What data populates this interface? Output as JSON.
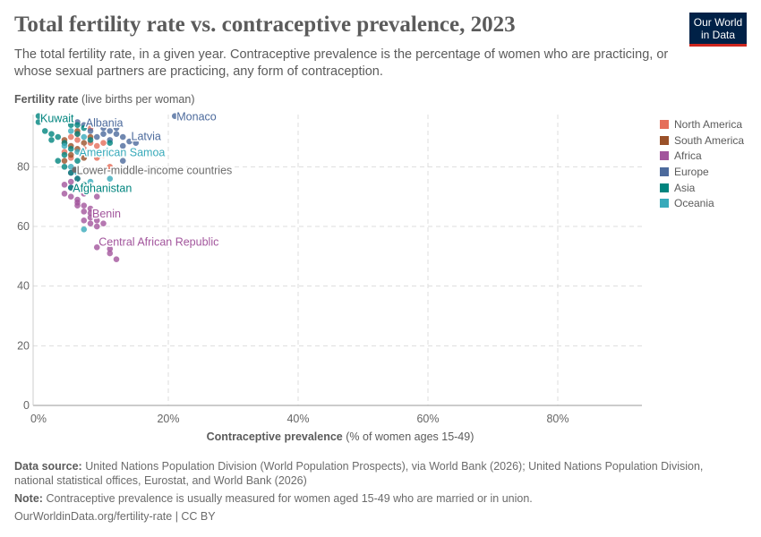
{
  "header": {
    "title": "Total fertility rate vs. contraceptive prevalence, 2023",
    "subtitle": "The total fertility rate, in a given year. Contraceptive prevalence is the percentage of women who are practicing, or whose sexual partners are practicing, any form of contraception.",
    "logo": "Our World in Data"
  },
  "chart_data": {
    "type": "scatter",
    "title": "Total fertility rate vs. contraceptive prevalence, 2023",
    "ylabel_bold": "Fertility rate",
    "ylabel_rest": "(live births per woman)",
    "xlabel_bold": "Contraceptive prevalence",
    "xlabel_rest": "(% of women ages 15-49)",
    "xlim": [
      0,
      90
    ],
    "ylim": [
      0,
      97
    ],
    "xticks": [
      {
        "v": 0,
        "label": "0%"
      },
      {
        "v": 20,
        "label": "20%"
      },
      {
        "v": 40,
        "label": "40%"
      },
      {
        "v": 60,
        "label": "60%"
      },
      {
        "v": 80,
        "label": "80%"
      }
    ],
    "yticks": [
      {
        "v": 0,
        "label": "0"
      },
      {
        "v": 20,
        "label": "20"
      },
      {
        "v": 40,
        "label": "40"
      },
      {
        "v": 60,
        "label": "60"
      },
      {
        "v": 80,
        "label": "80"
      }
    ],
    "grid": true,
    "legend_position": "right",
    "series": [
      {
        "name": "North America",
        "color": "#e56e5a",
        "points": [
          [
            5,
            90
          ],
          [
            6,
            89
          ],
          [
            8,
            88
          ],
          [
            9,
            87
          ],
          [
            10,
            88
          ],
          [
            7,
            86
          ],
          [
            4,
            85
          ],
          [
            5,
            83
          ],
          [
            9,
            83
          ],
          [
            10,
            84
          ],
          [
            6,
            91
          ],
          [
            8,
            93
          ],
          [
            11,
            80
          ],
          [
            4,
            88
          ]
        ]
      },
      {
        "name": "South America",
        "color": "#9a5129",
        "points": [
          [
            4,
            89
          ],
          [
            5,
            87
          ],
          [
            6,
            86
          ],
          [
            7,
            88
          ],
          [
            5,
            84
          ],
          [
            8,
            90
          ],
          [
            6,
            92
          ],
          [
            7,
            83
          ],
          [
            4,
            82
          ]
        ]
      },
      {
        "name": "Africa",
        "color": "#a2559c",
        "points": [
          [
            5,
            78
          ],
          [
            6,
            76
          ],
          [
            4,
            74
          ],
          [
            5,
            73
          ],
          [
            4,
            71
          ],
          [
            5,
            70
          ],
          [
            6,
            69
          ],
          [
            7,
            67
          ],
          [
            6,
            68
          ],
          [
            8,
            66
          ],
          [
            7,
            65
          ],
          [
            8,
            63
          ],
          [
            9,
            62
          ],
          [
            7,
            62
          ],
          [
            8,
            61
          ],
          [
            10,
            61
          ],
          [
            9,
            60
          ],
          [
            6,
            67
          ],
          [
            9,
            70
          ],
          [
            9,
            53
          ],
          [
            11,
            51
          ],
          [
            11,
            52.5
          ],
          [
            12,
            49
          ],
          [
            5,
            75
          ],
          [
            7,
            71
          ],
          [
            8,
            64.5
          ]
        ]
      },
      {
        "name": "Europe",
        "color": "#4c6a9c",
        "points": [
          [
            9,
            95
          ],
          [
            10,
            93
          ],
          [
            11,
            92
          ],
          [
            12,
            91
          ],
          [
            13,
            90
          ],
          [
            14,
            88.5
          ],
          [
            15,
            88
          ],
          [
            13,
            87
          ],
          [
            11,
            89
          ],
          [
            8,
            92
          ],
          [
            9,
            90
          ],
          [
            12,
            93
          ],
          [
            7,
            94
          ],
          [
            13,
            82
          ],
          [
            21,
            97
          ],
          [
            10,
            91
          ],
          [
            11,
            94
          ],
          [
            6,
            95
          ]
        ]
      },
      {
        "name": "Asia",
        "color": "#00847e",
        "points": [
          [
            0,
            97
          ],
          [
            0,
            95
          ],
          [
            1,
            92
          ],
          [
            2,
            91
          ],
          [
            4,
            96.5
          ],
          [
            5,
            97
          ],
          [
            6,
            94
          ],
          [
            7,
            93
          ],
          [
            3,
            90
          ],
          [
            4,
            88
          ],
          [
            5,
            86
          ],
          [
            4,
            84
          ],
          [
            3,
            82
          ],
          [
            4,
            80
          ],
          [
            5,
            78
          ],
          [
            6,
            76
          ],
          [
            5,
            73
          ],
          [
            7,
            74
          ],
          [
            8,
            89
          ],
          [
            11,
            88
          ],
          [
            6,
            91
          ],
          [
            2,
            89
          ],
          [
            6,
            82
          ],
          [
            5,
            94
          ]
        ]
      },
      {
        "name": "Oceania",
        "color": "#38aaba",
        "points": [
          [
            3,
            96
          ],
          [
            5,
            92
          ],
          [
            7,
            90
          ],
          [
            6,
            85
          ],
          [
            5,
            80
          ],
          [
            6,
            78
          ],
          [
            11,
            76
          ],
          [
            7,
            59
          ],
          [
            8,
            75
          ],
          [
            4,
            87
          ]
        ]
      }
    ],
    "other_points": [
      {
        "label": "Lower-middle-income countries",
        "color": "#6d6d6d",
        "x": 5.6,
        "y": 79
      }
    ],
    "annotations": [
      {
        "label": "Kuwait",
        "color": "#00847e",
        "x": 0,
        "y": 96.5
      },
      {
        "label": "Albania",
        "color": "#4c6a9c",
        "x": 7,
        "y": 95
      },
      {
        "label": "Monaco",
        "color": "#4c6a9c",
        "x": 21,
        "y": 97
      },
      {
        "label": "Latvia",
        "color": "#4c6a9c",
        "x": 14,
        "y": 90.5
      },
      {
        "label": "American Samoa",
        "color": "#38aaba",
        "x": 6,
        "y": 85
      },
      {
        "label": "Lower-middle-income countries",
        "color": "#6d6d6d",
        "x": 5.6,
        "y": 79
      },
      {
        "label": "Afghanistan",
        "color": "#00847e",
        "x": 5,
        "y": 73
      },
      {
        "label": "Benin",
        "color": "#a2559c",
        "x": 8,
        "y": 64.5
      },
      {
        "label": "Central African Republic",
        "color": "#a2559c",
        "x": 9,
        "y": 55
      }
    ]
  },
  "footer": {
    "source_label": "Data source:",
    "source": "United Nations Population Division (World Population Prospects), via World Bank (2026); United Nations Population Division, national statistical offices, Eurostat, and World Bank (2026)",
    "note_label": "Note:",
    "note": "Contraceptive prevalence is usually measured for women aged 15-49 who are married or in union.",
    "url": "OurWorldinData.org/fertility-rate | CC BY"
  }
}
